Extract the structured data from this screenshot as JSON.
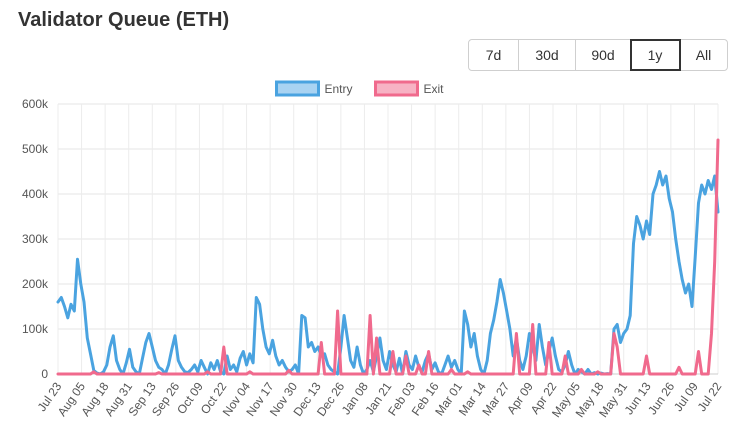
{
  "page": {
    "title": "Validator Queue (ETH)"
  },
  "ranges": [
    {
      "label": "7d",
      "active": false
    },
    {
      "label": "30d",
      "active": false
    },
    {
      "label": "90d",
      "active": false
    },
    {
      "label": "1y",
      "active": true
    },
    {
      "label": "All",
      "active": false
    }
  ],
  "chart_data": {
    "type": "line",
    "title": "",
    "xlabel": "",
    "ylabel": "",
    "ylim": [
      0,
      600000
    ],
    "y_ticks": [
      "0",
      "100k",
      "200k",
      "300k",
      "400k",
      "500k",
      "600k"
    ],
    "x_ticks": [
      "Jul 23",
      "Aug 05",
      "Aug 18",
      "Aug 31",
      "Sep 13",
      "Sep 26",
      "Oct 09",
      "Oct 22",
      "Nov 04",
      "Nov 17",
      "Nov 30",
      "Dec 13",
      "Dec 26",
      "Jan 08",
      "Jan 21",
      "Feb 03",
      "Feb 16",
      "Mar 01",
      "Mar 14",
      "Mar 27",
      "Apr 09",
      "Apr 22",
      "May 05",
      "May 18",
      "May 31",
      "Jun 13",
      "Jun 26",
      "Jul 09",
      "Jul 22"
    ],
    "grid": true,
    "legend_position": "top",
    "series": [
      {
        "name": "Entry",
        "color": "#4aa3e0",
        "points": [
          [
            0,
            160000
          ],
          [
            1,
            170000
          ],
          [
            2,
            150000
          ],
          [
            3,
            125000
          ],
          [
            4,
            155000
          ],
          [
            5,
            140000
          ],
          [
            6,
            255000
          ],
          [
            7,
            200000
          ],
          [
            8,
            160000
          ],
          [
            9,
            80000
          ],
          [
            10,
            45000
          ],
          [
            11,
            8000
          ],
          [
            12,
            2000
          ],
          [
            13,
            0
          ],
          [
            14,
            5000
          ],
          [
            15,
            20000
          ],
          [
            16,
            60000
          ],
          [
            17,
            85000
          ],
          [
            18,
            30000
          ],
          [
            19,
            10000
          ],
          [
            20,
            0
          ],
          [
            21,
            25000
          ],
          [
            22,
            55000
          ],
          [
            23,
            15000
          ],
          [
            24,
            5000
          ],
          [
            25,
            0
          ],
          [
            26,
            35000
          ],
          [
            27,
            70000
          ],
          [
            28,
            90000
          ],
          [
            29,
            60000
          ],
          [
            30,
            30000
          ],
          [
            31,
            15000
          ],
          [
            32,
            10000
          ],
          [
            33,
            0
          ],
          [
            34,
            20000
          ],
          [
            35,
            55000
          ],
          [
            36,
            85000
          ],
          [
            37,
            30000
          ],
          [
            38,
            15000
          ],
          [
            39,
            5000
          ],
          [
            40,
            3000
          ],
          [
            41,
            10000
          ],
          [
            42,
            20000
          ],
          [
            43,
            5000
          ],
          [
            44,
            30000
          ],
          [
            45,
            15000
          ],
          [
            46,
            0
          ],
          [
            47,
            25000
          ],
          [
            48,
            10000
          ],
          [
            49,
            30000
          ],
          [
            50,
            5000
          ],
          [
            51,
            0
          ],
          [
            52,
            40000
          ],
          [
            53,
            10000
          ],
          [
            54,
            20000
          ],
          [
            55,
            5000
          ],
          [
            56,
            35000
          ],
          [
            57,
            50000
          ],
          [
            58,
            20000
          ],
          [
            59,
            45000
          ],
          [
            60,
            25000
          ],
          [
            61,
            170000
          ],
          [
            62,
            155000
          ],
          [
            63,
            100000
          ],
          [
            64,
            60000
          ],
          [
            65,
            45000
          ],
          [
            66,
            75000
          ],
          [
            67,
            40000
          ],
          [
            68,
            20000
          ],
          [
            69,
            30000
          ],
          [
            70,
            15000
          ],
          [
            71,
            5000
          ],
          [
            72,
            10000
          ],
          [
            73,
            20000
          ],
          [
            74,
            0
          ],
          [
            75,
            130000
          ],
          [
            76,
            125000
          ],
          [
            77,
            60000
          ],
          [
            78,
            70000
          ],
          [
            79,
            50000
          ],
          [
            80,
            60000
          ],
          [
            81,
            40000
          ],
          [
            82,
            45000
          ],
          [
            83,
            20000
          ],
          [
            84,
            10000
          ],
          [
            85,
            5000
          ],
          [
            86,
            0
          ],
          [
            87,
            60000
          ],
          [
            88,
            130000
          ],
          [
            89,
            80000
          ],
          [
            90,
            30000
          ],
          [
            91,
            15000
          ],
          [
            92,
            60000
          ],
          [
            93,
            20000
          ],
          [
            94,
            0
          ],
          [
            95,
            10000
          ],
          [
            96,
            30000
          ],
          [
            97,
            5000
          ],
          [
            98,
            40000
          ],
          [
            99,
            80000
          ],
          [
            100,
            30000
          ],
          [
            101,
            10000
          ],
          [
            102,
            50000
          ],
          [
            103,
            20000
          ],
          [
            104,
            5000
          ],
          [
            105,
            35000
          ],
          [
            106,
            0
          ],
          [
            107,
            50000
          ],
          [
            108,
            20000
          ],
          [
            109,
            10000
          ],
          [
            110,
            40000
          ],
          [
            111,
            15000
          ],
          [
            112,
            5000
          ],
          [
            113,
            30000
          ],
          [
            114,
            45000
          ],
          [
            115,
            10000
          ],
          [
            116,
            25000
          ],
          [
            117,
            5000
          ],
          [
            118,
            0
          ],
          [
            119,
            20000
          ],
          [
            120,
            40000
          ],
          [
            121,
            15000
          ],
          [
            122,
            30000
          ],
          [
            123,
            10000
          ],
          [
            124,
            0
          ],
          [
            125,
            140000
          ],
          [
            126,
            110000
          ],
          [
            127,
            60000
          ],
          [
            128,
            90000
          ],
          [
            129,
            40000
          ],
          [
            130,
            10000
          ],
          [
            131,
            0
          ],
          [
            132,
            30000
          ],
          [
            133,
            90000
          ],
          [
            134,
            120000
          ],
          [
            135,
            160000
          ],
          [
            136,
            210000
          ],
          [
            137,
            180000
          ],
          [
            138,
            140000
          ],
          [
            139,
            100000
          ],
          [
            140,
            40000
          ],
          [
            141,
            80000
          ],
          [
            142,
            30000
          ],
          [
            143,
            10000
          ],
          [
            144,
            40000
          ],
          [
            145,
            90000
          ],
          [
            146,
            60000
          ],
          [
            147,
            30000
          ],
          [
            148,
            110000
          ],
          [
            149,
            60000
          ],
          [
            150,
            20000
          ],
          [
            151,
            50000
          ],
          [
            152,
            80000
          ],
          [
            153,
            40000
          ],
          [
            154,
            10000
          ],
          [
            155,
            5000
          ],
          [
            156,
            20000
          ],
          [
            157,
            50000
          ],
          [
            158,
            20000
          ],
          [
            159,
            0
          ],
          [
            160,
            10000
          ],
          [
            161,
            5000
          ],
          [
            162,
            0
          ],
          [
            163,
            10000
          ],
          [
            164,
            0
          ],
          [
            165,
            3000
          ],
          [
            166,
            0
          ],
          [
            167,
            2000
          ],
          [
            168,
            0
          ],
          [
            169,
            1000
          ],
          [
            170,
            0
          ],
          [
            171,
            100000
          ],
          [
            172,
            110000
          ],
          [
            173,
            70000
          ],
          [
            174,
            90000
          ],
          [
            175,
            100000
          ],
          [
            176,
            130000
          ],
          [
            177,
            290000
          ],
          [
            178,
            350000
          ],
          [
            179,
            330000
          ],
          [
            180,
            300000
          ],
          [
            181,
            340000
          ],
          [
            182,
            310000
          ],
          [
            183,
            400000
          ],
          [
            184,
            420000
          ],
          [
            185,
            450000
          ],
          [
            186,
            420000
          ],
          [
            187,
            440000
          ],
          [
            188,
            390000
          ],
          [
            189,
            360000
          ],
          [
            190,
            300000
          ],
          [
            191,
            250000
          ],
          [
            192,
            210000
          ],
          [
            193,
            180000
          ],
          [
            194,
            200000
          ],
          [
            195,
            150000
          ],
          [
            196,
            260000
          ],
          [
            197,
            380000
          ],
          [
            198,
            420000
          ],
          [
            199,
            400000
          ],
          [
            200,
            430000
          ],
          [
            201,
            410000
          ],
          [
            202,
            440000
          ],
          [
            203,
            360000
          ]
        ]
      },
      {
        "name": "Exit",
        "color": "#f06a8d",
        "points": [
          [
            0,
            0
          ],
          [
            10,
            0
          ],
          [
            11,
            5000
          ],
          [
            12,
            0
          ],
          [
            30,
            0
          ],
          [
            31,
            3000
          ],
          [
            32,
            0
          ],
          [
            45,
            0
          ],
          [
            46,
            5000
          ],
          [
            47,
            0
          ],
          [
            50,
            0
          ],
          [
            51,
            60000
          ],
          [
            52,
            0
          ],
          [
            58,
            0
          ],
          [
            59,
            5000
          ],
          [
            60,
            0
          ],
          [
            70,
            0
          ],
          [
            71,
            8000
          ],
          [
            72,
            0
          ],
          [
            74,
            0
          ],
          [
            75,
            0
          ],
          [
            80,
            0
          ],
          [
            81,
            70000
          ],
          [
            82,
            0
          ],
          [
            85,
            0
          ],
          [
            86,
            140000
          ],
          [
            87,
            0
          ],
          [
            95,
            0
          ],
          [
            96,
            130000
          ],
          [
            97,
            0
          ],
          [
            98,
            80000
          ],
          [
            99,
            0
          ],
          [
            102,
            0
          ],
          [
            103,
            50000
          ],
          [
            104,
            0
          ],
          [
            106,
            0
          ],
          [
            107,
            40000
          ],
          [
            108,
            0
          ],
          [
            110,
            0
          ],
          [
            111,
            20000
          ],
          [
            112,
            0
          ],
          [
            113,
            0
          ],
          [
            114,
            50000
          ],
          [
            115,
            0
          ],
          [
            120,
            0
          ],
          [
            121,
            10000
          ],
          [
            122,
            0
          ],
          [
            125,
            0
          ],
          [
            126,
            5000
          ],
          [
            127,
            0
          ],
          [
            140,
            0
          ],
          [
            141,
            90000
          ],
          [
            142,
            0
          ],
          [
            145,
            0
          ],
          [
            146,
            110000
          ],
          [
            147,
            0
          ],
          [
            150,
            0
          ],
          [
            151,
            70000
          ],
          [
            152,
            0
          ],
          [
            155,
            0
          ],
          [
            156,
            40000
          ],
          [
            157,
            0
          ],
          [
            160,
            0
          ],
          [
            161,
            10000
          ],
          [
            162,
            0
          ],
          [
            165,
            0
          ],
          [
            166,
            5000
          ],
          [
            167,
            0
          ],
          [
            170,
            0
          ],
          [
            171,
            90000
          ],
          [
            172,
            60000
          ],
          [
            173,
            0
          ],
          [
            180,
            0
          ],
          [
            181,
            40000
          ],
          [
            182,
            0
          ],
          [
            190,
            0
          ],
          [
            191,
            15000
          ],
          [
            192,
            0
          ],
          [
            196,
            0
          ],
          [
            197,
            50000
          ],
          [
            198,
            0
          ],
          [
            200,
            0
          ],
          [
            201,
            90000
          ],
          [
            202,
            250000
          ],
          [
            203,
            520000
          ]
        ]
      }
    ]
  }
}
